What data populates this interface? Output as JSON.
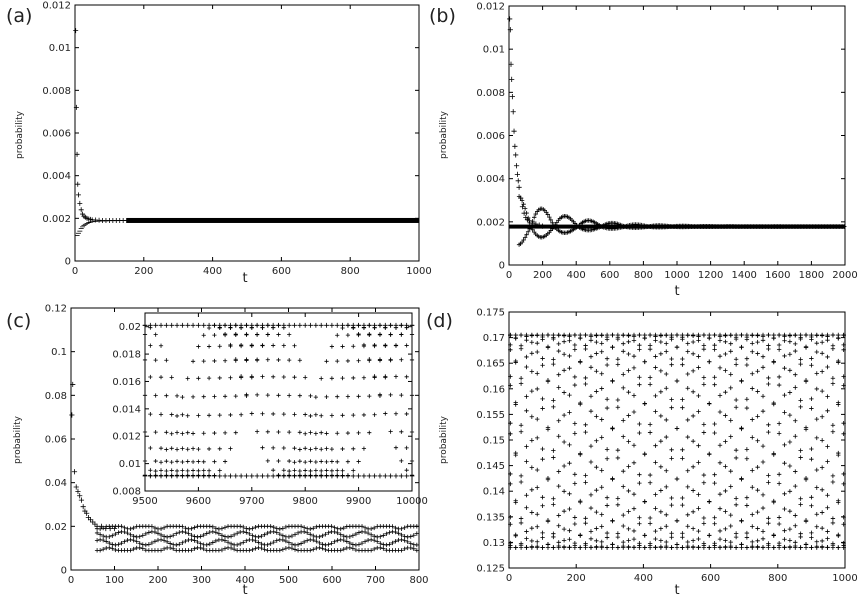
{
  "figure": {
    "panel_labels": [
      "(a)",
      "(b)",
      "(c)",
      "(d)"
    ]
  },
  "chart_data": [
    {
      "id": "a",
      "type": "scatter",
      "label": "(a)",
      "xlabel": "t",
      "ylabel": "probability",
      "xlim": [
        0,
        1000
      ],
      "ylim": [
        0,
        0.012
      ],
      "xticks": [
        0,
        200,
        400,
        600,
        800,
        1000
      ],
      "yticks": [
        0,
        0.002,
        0.004,
        0.006,
        0.008,
        0.01,
        0.012
      ],
      "series": [
        {
          "marker": "plus",
          "x": [
            2,
            4,
            6,
            8,
            10,
            14,
            18,
            22,
            26,
            30,
            35,
            40,
            45,
            50,
            60,
            70,
            80,
            90,
            100,
            110,
            120,
            130,
            140,
            150
          ],
          "y": [
            0.0108,
            0.0072,
            0.005,
            0.0036,
            0.0031,
            0.0027,
            0.0024,
            0.0022,
            0.0021,
            0.00205,
            0.002,
            0.00197,
            0.00195,
            0.00193,
            0.00192,
            0.00191,
            0.0019,
            0.0019,
            0.0019,
            0.0019,
            0.0019,
            0.0019,
            0.0019,
            0.0019
          ]
        },
        {
          "marker": "minus",
          "x": [
            6,
            10,
            14,
            18,
            22,
            26,
            30,
            35,
            40,
            45,
            50,
            60,
            70,
            80,
            90,
            100,
            110,
            120,
            130,
            140,
            150
          ],
          "y": [
            0.0012,
            0.0013,
            0.0014,
            0.00152,
            0.0016,
            0.00167,
            0.00172,
            0.00176,
            0.0018,
            0.00182,
            0.00184,
            0.00186,
            0.00187,
            0.00188,
            0.00188,
            0.00189,
            0.00189,
            0.00189,
            0.0019,
            0.0019,
            0.0019
          ]
        },
        {
          "marker": "band",
          "x": [
            150,
            1000
          ],
          "y": [
            0.0019,
            0.0019
          ]
        }
      ]
    },
    {
      "id": "b",
      "type": "scatter",
      "label": "(b)",
      "xlabel": "t",
      "ylabel": "probability",
      "xlim": [
        0,
        2000
      ],
      "ylim": [
        0,
        0.012
      ],
      "xticks": [
        0,
        200,
        400,
        600,
        800,
        1000,
        1200,
        1400,
        1600,
        1800,
        2000
      ],
      "yticks": [
        0,
        0.002,
        0.004,
        0.006,
        0.008,
        0.01,
        0.012
      ],
      "series": [
        {
          "marker": "plus",
          "x": [
            4,
            8,
            12,
            16,
            20,
            25,
            30,
            35,
            40,
            45,
            50,
            55,
            60,
            70,
            80,
            90,
            100,
            110,
            120,
            140,
            160,
            180,
            200
          ],
          "y": [
            0.0114,
            0.0109,
            0.0093,
            0.0086,
            0.0078,
            0.0071,
            0.0062,
            0.0055,
            0.0051,
            0.0046,
            0.0042,
            0.0039,
            0.0036,
            0.0031,
            0.0027,
            0.0024,
            0.0022,
            0.0021,
            0.00205,
            0.00195,
            0.0019,
            0.00185,
            0.0018
          ]
        },
        {
          "marker": "wave",
          "amplitude_start": 0.0014,
          "decay": 260,
          "period": 140,
          "center": 0.00178,
          "x": [
            60,
            2000
          ]
        },
        {
          "marker": "band",
          "x": [
            0,
            2000
          ],
          "y": [
            0.00178,
            0.00178
          ]
        }
      ]
    },
    {
      "id": "c",
      "type": "scatter",
      "label": "(c)",
      "xlabel": "t",
      "ylabel": "probability",
      "xlim": [
        0,
        800
      ],
      "ylim": [
        0,
        0.12
      ],
      "xticks": [
        0,
        100,
        200,
        300,
        400,
        500,
        600,
        700,
        800
      ],
      "yticks": [
        0,
        0.02,
        0.04,
        0.06,
        0.08,
        0.1,
        0.12
      ],
      "series": [
        {
          "marker": "plus",
          "x": [
            2,
            4,
            8,
            12,
            16,
            20,
            24,
            28,
            32,
            36,
            40,
            45,
            50,
            55,
            60,
            70,
            80,
            90,
            100
          ],
          "y": [
            0.071,
            0.085,
            0.045,
            0.038,
            0.036,
            0.034,
            0.032,
            0.029,
            0.027,
            0.026,
            0.024,
            0.023,
            0.022,
            0.021,
            0.02,
            0.02,
            0.019,
            0.019,
            0.019
          ]
        },
        {
          "marker": "oscillating-band",
          "x": [
            60,
            800
          ],
          "upper": 0.02,
          "lower": 0.009,
          "rows": 4
        }
      ],
      "inset": {
        "xlim": [
          9500,
          10000
        ],
        "ylim": [
          0.008,
          0.021
        ],
        "xticks": [
          9500,
          9600,
          9700,
          9800,
          9900,
          10000
        ],
        "yticks": [
          0.008,
          0.01,
          0.012,
          0.014,
          0.016,
          0.018,
          0.02
        ],
        "upper": 0.0201,
        "lower": 0.0091,
        "period": 250
      }
    },
    {
      "id": "d",
      "type": "scatter",
      "label": "(d)",
      "xlabel": "t",
      "ylabel": "probability",
      "xlim": [
        0,
        1000
      ],
      "ylim": [
        0.125,
        0.175
      ],
      "xticks": [
        0,
        200,
        400,
        600,
        800,
        1000
      ],
      "yticks": [
        0.125,
        0.13,
        0.135,
        0.14,
        0.145,
        0.15,
        0.155,
        0.16,
        0.165,
        0.17,
        0.175
      ],
      "series": [
        {
          "marker": "diamond-lattice",
          "x": [
            0,
            1000
          ],
          "upper": 0.1705,
          "lower": 0.129,
          "period": 1000,
          "rows": 13
        }
      ]
    }
  ]
}
